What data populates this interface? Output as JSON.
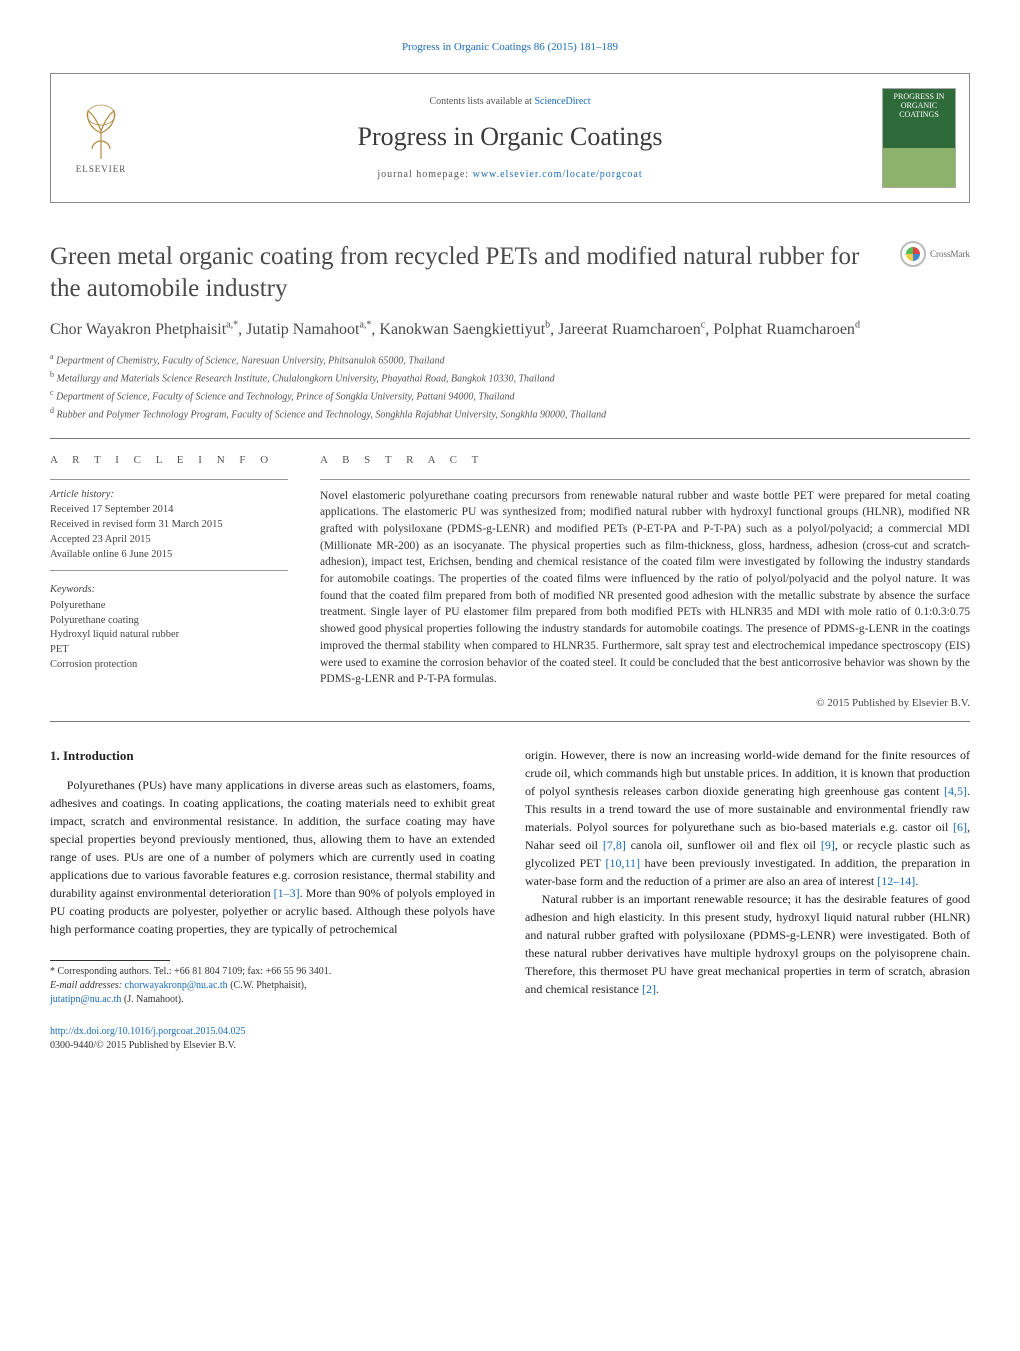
{
  "journal_ref": "Progress in Organic Coatings 86 (2015) 181–189",
  "header": {
    "contents_prefix": "Contents lists available at ",
    "contents_link": "ScienceDirect",
    "journal_title": "Progress in Organic Coatings",
    "homepage_prefix": "journal homepage: ",
    "homepage_link": "www.elsevier.com/locate/porgcoat",
    "publisher": "ELSEVIER",
    "cover_caption_top": "PROGRESS IN",
    "cover_caption_main": "ORGANIC COATINGS"
  },
  "title": "Green metal organic coating from recycled PETs and modified natural rubber for the automobile industry",
  "crossmark_label": "CrossMark",
  "authors_html": "Chor Wayakron Phetphaisit<sup>a,*</sup>, Jutatip Namahoot<sup>a,*</sup>, Kanokwan Saengkiettiyut<sup>b</sup>, Jareerat Ruamcharoen<sup>c</sup>, Polphat Ruamcharoen<sup>d</sup>",
  "affiliations": [
    {
      "sup": "a",
      "text": "Department of Chemistry, Faculty of Science, Naresuan University, Phitsanulok 65000, Thailand"
    },
    {
      "sup": "b",
      "text": "Metallurgy and Materials Science Research Institute, Chulalongkorn University, Phayathai Road, Bangkok 10330, Thailand"
    },
    {
      "sup": "c",
      "text": "Department of Science, Faculty of Science and Technology, Prince of Songkla University, Pattani 94000, Thailand"
    },
    {
      "sup": "d",
      "text": "Rubber and Polymer Technology Program, Faculty of Science and Technology, Songkhla Rajabhat University, Songkhla 90000, Thailand"
    }
  ],
  "article_info": {
    "heading": "A R T I C L E   I N F O",
    "history_head": "Article history:",
    "history": [
      "Received 17 September 2014",
      "Received in revised form 31 March 2015",
      "Accepted 23 April 2015",
      "Available online 6 June 2015"
    ],
    "keywords_head": "Keywords:",
    "keywords": [
      "Polyurethane",
      "Polyurethane coating",
      "Hydroxyl liquid natural rubber",
      "PET",
      "Corrosion protection"
    ]
  },
  "abstract": {
    "heading": "A B S T R A C T",
    "text": "Novel elastomeric polyurethane coating precursors from renewable natural rubber and waste bottle PET were prepared for metal coating applications. The elastomeric PU was synthesized from; modified natural rubber with hydroxyl functional groups (HLNR), modified NR grafted with polysiloxane (PDMS-g-LENR) and modified PETs (P-ET-PA and P-T-PA) such as a polyol/polyacid; a commercial MDI (Millionate MR-200) as an isocyanate. The physical properties such as film-thickness, gloss, hardness, adhesion (cross-cut and scratch-adhesion), impact test, Erichsen, bending and chemical resistance of the coated film were investigated by following the industry standards for automobile coatings. The properties of the coated films were influenced by the ratio of polyol/polyacid and the polyol nature. It was found that the coated film prepared from both of modified NR presented good adhesion with the metallic substrate by absence the surface treatment. Single layer of PU elastomer film prepared from both modified PETs with HLNR35 and MDI with mole ratio of 0.1:0.3:0.75 showed good physical properties following the industry standards for automobile coatings. The presence of PDMS-g-LENR in the coatings improved the thermal stability when compared to HLNR35. Furthermore, salt spray test and electrochemical impedance spectroscopy (EIS) were used to examine the corrosion behavior of the coated steel. It could be concluded that the best anticorrosive behavior was shown by the PDMS-g-LENR and P-T-PA formulas.",
    "copyright": "© 2015 Published by Elsevier B.V."
  },
  "body": {
    "section_heading": "1.  Introduction",
    "p1_a": "Polyurethanes (PUs) have many applications in diverse areas such as elastomers, foams, adhesives and coatings. In coating applications, the coating materials need to exhibit great impact, scratch and environmental resistance. In addition, the surface coating may have special properties beyond previously mentioned, thus, allowing them to have an extended range of uses. PUs are one of a number of polymers which are currently used in coating applications due to various favorable features e.g. corrosion resistance, thermal stability and durability against environmental deterioration ",
    "p1_ref1": "[1–3]",
    "p1_b": ". More than 90% of polyols employed in PU coating products are polyester, polyether or acrylic based. Although these polyols have high performance coating properties, they are typically of petrochemical",
    "p2_a": "origin. However, there is now an increasing world-wide demand for the finite resources of crude oil, which commands high but unstable prices. In addition, it is known that production of polyol synthesis releases carbon dioxide generating high greenhouse gas content ",
    "p2_ref1": "[4,5]",
    "p2_b": ". This results in a trend toward the use of more sustainable and environmental friendly raw materials. Polyol sources for polyurethane such as bio-based materials e.g. castor oil ",
    "p2_ref2": "[6]",
    "p2_c": ", Nahar seed oil ",
    "p2_ref3": "[7,8]",
    "p2_d": " canola oil, sunflower oil and flex oil ",
    "p2_ref4": "[9]",
    "p2_e": ", or recycle plastic such as glycolized PET ",
    "p2_ref5": "[10,11]",
    "p2_f": " have been previously investigated. In addition, the preparation in water-base form and the reduction of a primer are also an area of interest ",
    "p2_ref6": "[12–14]",
    "p2_g": ".",
    "p3_a": "Natural rubber is an important renewable resource; it has the desirable features of good adhesion and high elasticity. In this present study, hydroxyl liquid natural rubber (HLNR) and natural rubber grafted with polysiloxane (PDMS-g-LENR) were investigated. Both of these natural rubber derivatives have multiple hydroxyl groups on the polyisoprene chain. Therefore, this thermoset PU have great mechanical properties in term of scratch, abrasion and chemical resistance ",
    "p3_ref1": "[2]",
    "p3_b": "."
  },
  "footnotes": {
    "corr": "* Corresponding authors. Tel.: +66 81 804 7109; fax: +66 55 96 3401.",
    "email_label": "E-mail addresses: ",
    "email1": "chorwayakronp@nu.ac.th",
    "email1_who": " (C.W. Phetphaisit), ",
    "email2": "jutatipn@nu.ac.th",
    "email2_who": " (J. Namahoot)."
  },
  "bottom": {
    "doi": "http://dx.doi.org/10.1016/j.porgcoat.2015.04.025",
    "issn_line": "0300-9440/© 2015 Published by Elsevier B.V."
  },
  "colors": {
    "link": "#1a6bb5",
    "text": "#333333",
    "rule": "#777777"
  }
}
